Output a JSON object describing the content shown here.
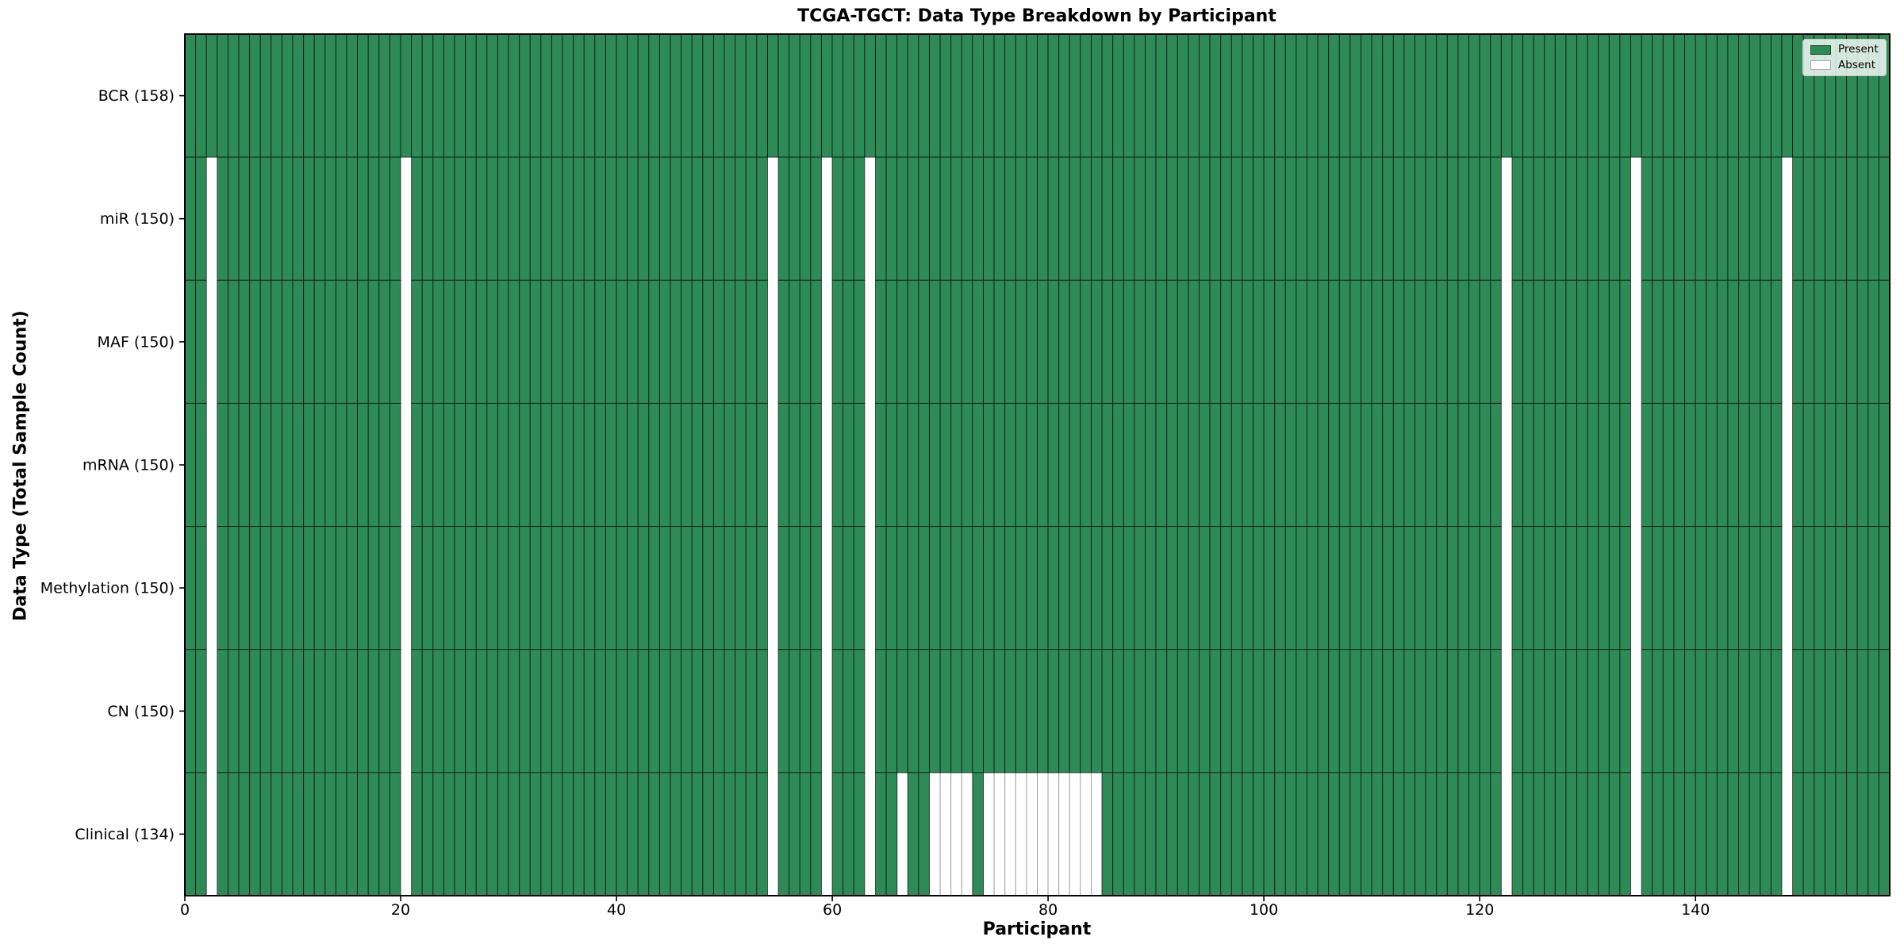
{
  "chart_data": {
    "type": "heatmap",
    "title": "TCGA-TGCT: Data Type Breakdown by Participant",
    "xlabel": "Participant",
    "ylabel": "Data Type (Total Sample Count)",
    "n_participants": 158,
    "x_ticks": [
      0,
      20,
      40,
      60,
      80,
      100,
      120,
      140
    ],
    "legend": [
      {
        "label": "Present",
        "color": "#2e8b57"
      },
      {
        "label": "Absent",
        "color": "#ffffff"
      }
    ],
    "colors": {
      "present": "#2e8b57",
      "absent": "#ffffff",
      "cell_edge": "rgba(0,0,0,0.62)",
      "absent_cell_edge": "#9a9a9a",
      "spine": "#000000",
      "legend_border": "#cccccc"
    },
    "rows": [
      {
        "label": "BCR (158)",
        "data_type": "BCR",
        "total": 158,
        "absent": []
      },
      {
        "label": "miR (150)",
        "data_type": "miR",
        "total": 150,
        "absent": [
          2,
          20,
          54,
          59,
          63,
          122,
          134,
          148
        ]
      },
      {
        "label": "MAF (150)",
        "data_type": "MAF",
        "total": 150,
        "absent": [
          2,
          20,
          54,
          59,
          63,
          122,
          134,
          148
        ]
      },
      {
        "label": "mRNA (150)",
        "data_type": "mRNA",
        "total": 150,
        "absent": [
          2,
          20,
          54,
          59,
          63,
          122,
          134,
          148
        ]
      },
      {
        "label": "Methylation (150)",
        "data_type": "Methylation",
        "total": 150,
        "absent": [
          2,
          20,
          54,
          59,
          63,
          122,
          134,
          148
        ]
      },
      {
        "label": "CN (150)",
        "data_type": "CN",
        "total": 150,
        "absent": [
          2,
          20,
          54,
          59,
          63,
          122,
          134,
          148
        ]
      },
      {
        "label": "Clinical (134)",
        "data_type": "Clinical",
        "total": 134,
        "absent": [
          2,
          20,
          54,
          59,
          63,
          66,
          69,
          70,
          71,
          72,
          74,
          75,
          76,
          77,
          78,
          79,
          80,
          81,
          82,
          83,
          84,
          122,
          134,
          148
        ]
      }
    ]
  }
}
